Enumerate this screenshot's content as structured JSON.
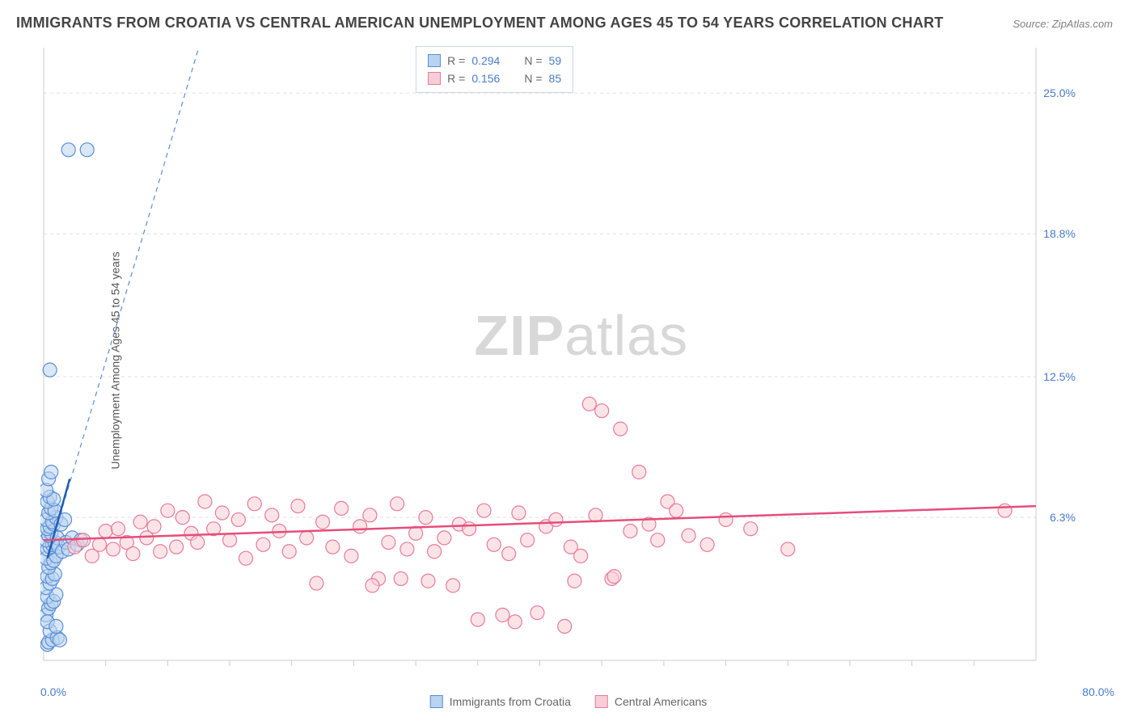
{
  "title": "IMMIGRANTS FROM CROATIA VS CENTRAL AMERICAN UNEMPLOYMENT AMONG AGES 45 TO 54 YEARS CORRELATION CHART",
  "source": "Source: ZipAtlas.com",
  "y_axis_label": "Unemployment Among Ages 45 to 54 years",
  "watermark_zip": "ZIP",
  "watermark_atlas": "atlas",
  "chart": {
    "type": "scatter",
    "xlim": [
      0,
      80
    ],
    "ylim": [
      0,
      27
    ],
    "x_min_label": "0.0%",
    "x_max_label": "80.0%",
    "y_ticks": [
      {
        "v": 6.3,
        "label": "6.3%"
      },
      {
        "v": 12.5,
        "label": "12.5%"
      },
      {
        "v": 18.8,
        "label": "18.8%"
      },
      {
        "v": 25.0,
        "label": "25.0%"
      }
    ],
    "x_ticks_minor": [
      5,
      10,
      15,
      20,
      25,
      30,
      35,
      40,
      45,
      50,
      55,
      60,
      65,
      70,
      75
    ],
    "grid_color": "#e0e0e0",
    "grid_dash": "4,4",
    "axis_color": "#cccccc",
    "background_color": "#ffffff",
    "marker_radius": 8.5,
    "marker_stroke_width": 1.2,
    "series": [
      {
        "name": "Immigrants from Croatia",
        "fill": "#b9d3f0",
        "stroke": "#5a8fd6",
        "fill_opacity": 0.55,
        "R": "0.294",
        "N": "59",
        "trend_solid": {
          "x1": 0.3,
          "y1": 4.5,
          "x2": 2.1,
          "y2": 8.0,
          "stroke": "#1f5fb0",
          "width": 2.5
        },
        "trend_dash": {
          "x1": 0.3,
          "y1": 4.5,
          "x2": 12.5,
          "y2": 27.0,
          "stroke": "#5a8fd6",
          "width": 1.2,
          "dash": "6,5"
        },
        "points": [
          [
            0.3,
            0.7
          ],
          [
            0.4,
            0.8
          ],
          [
            0.7,
            0.9
          ],
          [
            0.5,
            1.3
          ],
          [
            1.1,
            1.0
          ],
          [
            1.3,
            0.9
          ],
          [
            0.2,
            2.0
          ],
          [
            0.4,
            2.3
          ],
          [
            0.6,
            2.5
          ],
          [
            0.3,
            2.8
          ],
          [
            0.8,
            2.6
          ],
          [
            1.0,
            2.9
          ],
          [
            0.2,
            3.2
          ],
          [
            0.5,
            3.4
          ],
          [
            0.3,
            3.7
          ],
          [
            0.7,
            3.6
          ],
          [
            0.9,
            3.8
          ],
          [
            0.4,
            4.1
          ],
          [
            0.6,
            4.3
          ],
          [
            0.2,
            4.5
          ],
          [
            0.8,
            4.4
          ],
          [
            1.0,
            4.6
          ],
          [
            0.3,
            4.9
          ],
          [
            0.5,
            5.0
          ],
          [
            0.7,
            5.1
          ],
          [
            0.2,
            5.3
          ],
          [
            0.9,
            5.2
          ],
          [
            0.4,
            5.5
          ],
          [
            0.6,
            5.6
          ],
          [
            1.1,
            5.4
          ],
          [
            0.3,
            5.8
          ],
          [
            0.5,
            5.9
          ],
          [
            0.8,
            6.0
          ],
          [
            0.2,
            6.2
          ],
          [
            0.7,
            6.1
          ],
          [
            1.0,
            6.3
          ],
          [
            0.4,
            6.5
          ],
          [
            0.6,
            6.7
          ],
          [
            0.9,
            6.6
          ],
          [
            0.3,
            7.0
          ],
          [
            0.5,
            7.2
          ],
          [
            0.8,
            7.1
          ],
          [
            0.2,
            7.5
          ],
          [
            1.2,
            5.0
          ],
          [
            1.5,
            4.8
          ],
          [
            1.8,
            5.2
          ],
          [
            2.0,
            4.9
          ],
          [
            2.3,
            5.4
          ],
          [
            2.7,
            5.1
          ],
          [
            3.0,
            5.3
          ],
          [
            1.4,
            6.0
          ],
          [
            1.7,
            6.2
          ],
          [
            0.4,
            8.0
          ],
          [
            0.6,
            8.3
          ],
          [
            0.5,
            12.8
          ],
          [
            2.0,
            22.5
          ],
          [
            3.5,
            22.5
          ],
          [
            0.3,
            1.7
          ],
          [
            1.0,
            1.5
          ]
        ]
      },
      {
        "name": "Central Americans",
        "fill": "#f7cdd6",
        "stroke": "#e87a9a",
        "fill_opacity": 0.55,
        "R": "0.156",
        "N": "85",
        "trend_solid": {
          "x1": 0,
          "y1": 5.3,
          "x2": 80,
          "y2": 6.8,
          "stroke": "#e54d7a",
          "width": 2.5
        },
        "points": [
          [
            2.5,
            5.0
          ],
          [
            3.2,
            5.3
          ],
          [
            3.9,
            4.6
          ],
          [
            4.5,
            5.1
          ],
          [
            5.0,
            5.7
          ],
          [
            5.6,
            4.9
          ],
          [
            6.0,
            5.8
          ],
          [
            6.7,
            5.2
          ],
          [
            7.2,
            4.7
          ],
          [
            7.8,
            6.1
          ],
          [
            8.3,
            5.4
          ],
          [
            8.9,
            5.9
          ],
          [
            9.4,
            4.8
          ],
          [
            10.0,
            6.6
          ],
          [
            10.7,
            5.0
          ],
          [
            11.2,
            6.3
          ],
          [
            11.9,
            5.6
          ],
          [
            12.4,
            5.2
          ],
          [
            13.0,
            7.0
          ],
          [
            13.7,
            5.8
          ],
          [
            14.4,
            6.5
          ],
          [
            15.0,
            5.3
          ],
          [
            15.7,
            6.2
          ],
          [
            16.3,
            4.5
          ],
          [
            17.0,
            6.9
          ],
          [
            17.7,
            5.1
          ],
          [
            18.4,
            6.4
          ],
          [
            19.0,
            5.7
          ],
          [
            19.8,
            4.8
          ],
          [
            20.5,
            6.8
          ],
          [
            21.2,
            5.4
          ],
          [
            22.0,
            3.4
          ],
          [
            22.5,
            6.1
          ],
          [
            23.3,
            5.0
          ],
          [
            24.0,
            6.7
          ],
          [
            24.8,
            4.6
          ],
          [
            25.5,
            5.9
          ],
          [
            26.3,
            6.4
          ],
          [
            27.0,
            3.6
          ],
          [
            27.8,
            5.2
          ],
          [
            28.5,
            6.9
          ],
          [
            29.3,
            4.9
          ],
          [
            30.0,
            5.6
          ],
          [
            30.8,
            6.3
          ],
          [
            31.5,
            4.8
          ],
          [
            32.3,
            5.4
          ],
          [
            33.0,
            3.3
          ],
          [
            33.5,
            6.0
          ],
          [
            34.3,
            5.8
          ],
          [
            35.0,
            1.8
          ],
          [
            35.5,
            6.6
          ],
          [
            36.3,
            5.1
          ],
          [
            37.0,
            2.0
          ],
          [
            37.5,
            4.7
          ],
          [
            38.3,
            6.5
          ],
          [
            39.0,
            5.3
          ],
          [
            39.8,
            2.1
          ],
          [
            40.5,
            5.9
          ],
          [
            41.3,
            6.2
          ],
          [
            42.0,
            1.5
          ],
          [
            42.5,
            5.0
          ],
          [
            43.3,
            4.6
          ],
          [
            44.0,
            11.3
          ],
          [
            44.5,
            6.4
          ],
          [
            45.0,
            11.0
          ],
          [
            45.8,
            3.6
          ],
          [
            46.5,
            10.2
          ],
          [
            47.3,
            5.7
          ],
          [
            48.0,
            8.3
          ],
          [
            48.8,
            6.0
          ],
          [
            49.5,
            5.3
          ],
          [
            50.3,
            7.0
          ],
          [
            51.0,
            6.6
          ],
          [
            52.0,
            5.5
          ],
          [
            53.5,
            5.1
          ],
          [
            55.0,
            6.2
          ],
          [
            57.0,
            5.8
          ],
          [
            60.0,
            4.9
          ],
          [
            46.0,
            3.7
          ],
          [
            42.8,
            3.5
          ],
          [
            77.5,
            6.6
          ],
          [
            26.5,
            3.3
          ],
          [
            28.8,
            3.6
          ],
          [
            31.0,
            3.5
          ],
          [
            38.0,
            1.7
          ]
        ]
      }
    ]
  },
  "legend_bottom": [
    {
      "swatch": "blue",
      "label": "Immigrants from Croatia"
    },
    {
      "swatch": "pink",
      "label": "Central Americans"
    }
  ]
}
